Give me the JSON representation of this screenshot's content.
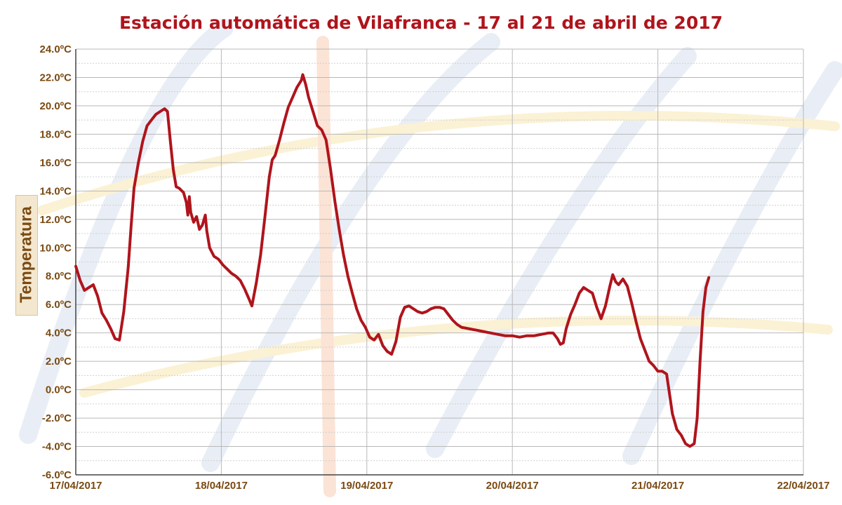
{
  "colors": {
    "title": "#b0141c",
    "series": "#b0141c",
    "tick": "#7a4a12",
    "grid": "#b8b8b8"
  },
  "chart_data": {
    "type": "line",
    "title": "Estación automática de Vilafranca - 17 al 21 de abril de 2017",
    "ylabel": "Temperatura",
    "xlabel": "",
    "ylim": [
      -6,
      24
    ],
    "xlim": [
      0,
      5
    ],
    "grid": true,
    "y_ticks": [
      {
        "v": 24,
        "label": "24.0ºC"
      },
      {
        "v": 22,
        "label": "22.0ºC"
      },
      {
        "v": 20,
        "label": "20.0ºC"
      },
      {
        "v": 18,
        "label": "18.0ºC"
      },
      {
        "v": 16,
        "label": "16.0ºC"
      },
      {
        "v": 14,
        "label": "14.0ºC"
      },
      {
        "v": 12,
        "label": "12.0ºC"
      },
      {
        "v": 10,
        "label": "10.0ºC"
      },
      {
        "v": 8,
        "label": "8.0ºC"
      },
      {
        "v": 6,
        "label": "6.0ºC"
      },
      {
        "v": 4,
        "label": "4.0ºC"
      },
      {
        "v": 2,
        "label": "2.0ºC"
      },
      {
        "v": 0,
        "label": "0.0ºC"
      },
      {
        "v": -2,
        "label": "-2.0ºC"
      },
      {
        "v": -4,
        "label": "-4.0ºC"
      },
      {
        "v": -6,
        "label": "-6.0ºC"
      }
    ],
    "x_ticks": [
      {
        "v": 0,
        "label": "17/04/2017"
      },
      {
        "v": 1,
        "label": "18/04/2017"
      },
      {
        "v": 2,
        "label": "19/04/2017"
      },
      {
        "v": 3,
        "label": "20/04/2017"
      },
      {
        "v": 4,
        "label": "21/04/2017"
      },
      {
        "v": 5,
        "label": "22/04/2017"
      }
    ],
    "series": [
      {
        "points": [
          [
            0.0,
            8.7
          ],
          [
            0.03,
            7.7
          ],
          [
            0.06,
            7.0
          ],
          [
            0.09,
            7.2
          ],
          [
            0.12,
            7.4
          ],
          [
            0.15,
            6.6
          ],
          [
            0.18,
            5.4
          ],
          [
            0.21,
            4.9
          ],
          [
            0.24,
            4.3
          ],
          [
            0.27,
            3.6
          ],
          [
            0.3,
            3.5
          ],
          [
            0.33,
            5.5
          ],
          [
            0.36,
            8.6
          ],
          [
            0.38,
            11.5
          ],
          [
            0.4,
            14.2
          ],
          [
            0.43,
            16.0
          ],
          [
            0.46,
            17.5
          ],
          [
            0.49,
            18.6
          ],
          [
            0.52,
            19.0
          ],
          [
            0.55,
            19.4
          ],
          [
            0.58,
            19.6
          ],
          [
            0.61,
            19.8
          ],
          [
            0.63,
            19.6
          ],
          [
            0.65,
            17.5
          ],
          [
            0.67,
            15.5
          ],
          [
            0.69,
            14.3
          ],
          [
            0.71,
            14.2
          ],
          [
            0.74,
            13.9
          ],
          [
            0.76,
            13.2
          ],
          [
            0.77,
            12.3
          ],
          [
            0.78,
            13.6
          ],
          [
            0.79,
            12.5
          ],
          [
            0.81,
            11.8
          ],
          [
            0.83,
            12.2
          ],
          [
            0.85,
            11.3
          ],
          [
            0.87,
            11.6
          ],
          [
            0.89,
            12.3
          ],
          [
            0.9,
            11.2
          ],
          [
            0.92,
            10.0
          ],
          [
            0.95,
            9.4
          ],
          [
            0.98,
            9.2
          ],
          [
            1.01,
            8.8
          ],
          [
            1.04,
            8.5
          ],
          [
            1.07,
            8.2
          ],
          [
            1.1,
            8.0
          ],
          [
            1.13,
            7.7
          ],
          [
            1.16,
            7.1
          ],
          [
            1.19,
            6.4
          ],
          [
            1.21,
            5.9
          ],
          [
            1.24,
            7.5
          ],
          [
            1.27,
            9.5
          ],
          [
            1.3,
            12.2
          ],
          [
            1.33,
            15.0
          ],
          [
            1.35,
            16.2
          ],
          [
            1.37,
            16.5
          ],
          [
            1.4,
            17.6
          ],
          [
            1.43,
            18.8
          ],
          [
            1.46,
            19.9
          ],
          [
            1.49,
            20.6
          ],
          [
            1.52,
            21.3
          ],
          [
            1.55,
            21.8
          ],
          [
            1.56,
            22.2
          ],
          [
            1.58,
            21.5
          ],
          [
            1.6,
            20.6
          ],
          [
            1.63,
            19.6
          ],
          [
            1.66,
            18.6
          ],
          [
            1.69,
            18.3
          ],
          [
            1.72,
            17.6
          ],
          [
            1.75,
            15.6
          ],
          [
            1.78,
            13.3
          ],
          [
            1.81,
            11.3
          ],
          [
            1.84,
            9.5
          ],
          [
            1.87,
            8.0
          ],
          [
            1.9,
            6.8
          ],
          [
            1.93,
            5.7
          ],
          [
            1.96,
            4.9
          ],
          [
            1.99,
            4.4
          ],
          [
            2.02,
            3.7
          ],
          [
            2.05,
            3.5
          ],
          [
            2.08,
            3.9
          ],
          [
            2.11,
            3.1
          ],
          [
            2.14,
            2.7
          ],
          [
            2.17,
            2.5
          ],
          [
            2.2,
            3.4
          ],
          [
            2.23,
            5.1
          ],
          [
            2.26,
            5.8
          ],
          [
            2.29,
            5.9
          ],
          [
            2.32,
            5.7
          ],
          [
            2.35,
            5.5
          ],
          [
            2.38,
            5.4
          ],
          [
            2.41,
            5.5
          ],
          [
            2.44,
            5.7
          ],
          [
            2.47,
            5.8
          ],
          [
            2.5,
            5.8
          ],
          [
            2.53,
            5.7
          ],
          [
            2.56,
            5.3
          ],
          [
            2.59,
            4.9
          ],
          [
            2.62,
            4.6
          ],
          [
            2.65,
            4.4
          ],
          [
            2.7,
            4.3
          ],
          [
            2.75,
            4.2
          ],
          [
            2.8,
            4.1
          ],
          [
            2.85,
            4.0
          ],
          [
            2.9,
            3.9
          ],
          [
            2.95,
            3.8
          ],
          [
            3.0,
            3.8
          ],
          [
            3.05,
            3.7
          ],
          [
            3.1,
            3.8
          ],
          [
            3.15,
            3.8
          ],
          [
            3.2,
            3.9
          ],
          [
            3.25,
            4.0
          ],
          [
            3.28,
            4.0
          ],
          [
            3.31,
            3.6
          ],
          [
            3.33,
            3.2
          ],
          [
            3.35,
            3.3
          ],
          [
            3.37,
            4.3
          ],
          [
            3.4,
            5.3
          ],
          [
            3.43,
            6.0
          ],
          [
            3.46,
            6.8
          ],
          [
            3.49,
            7.2
          ],
          [
            3.52,
            7.0
          ],
          [
            3.55,
            6.8
          ],
          [
            3.58,
            5.8
          ],
          [
            3.61,
            5.0
          ],
          [
            3.64,
            5.9
          ],
          [
            3.67,
            7.3
          ],
          [
            3.69,
            8.1
          ],
          [
            3.71,
            7.6
          ],
          [
            3.73,
            7.4
          ],
          [
            3.76,
            7.8
          ],
          [
            3.79,
            7.3
          ],
          [
            3.82,
            6.1
          ],
          [
            3.85,
            4.8
          ],
          [
            3.88,
            3.6
          ],
          [
            3.91,
            2.8
          ],
          [
            3.94,
            2.0
          ],
          [
            3.97,
            1.7
          ],
          [
            4.0,
            1.3
          ],
          [
            4.03,
            1.3
          ],
          [
            4.06,
            1.1
          ],
          [
            4.08,
            -0.3
          ],
          [
            4.1,
            -1.7
          ],
          [
            4.13,
            -2.8
          ],
          [
            4.16,
            -3.2
          ],
          [
            4.19,
            -3.8
          ],
          [
            4.22,
            -4.0
          ],
          [
            4.25,
            -3.8
          ],
          [
            4.27,
            -2.0
          ],
          [
            4.29,
            2.0
          ],
          [
            4.31,
            5.5
          ],
          [
            4.33,
            7.2
          ],
          [
            4.35,
            7.9
          ]
        ]
      }
    ]
  }
}
